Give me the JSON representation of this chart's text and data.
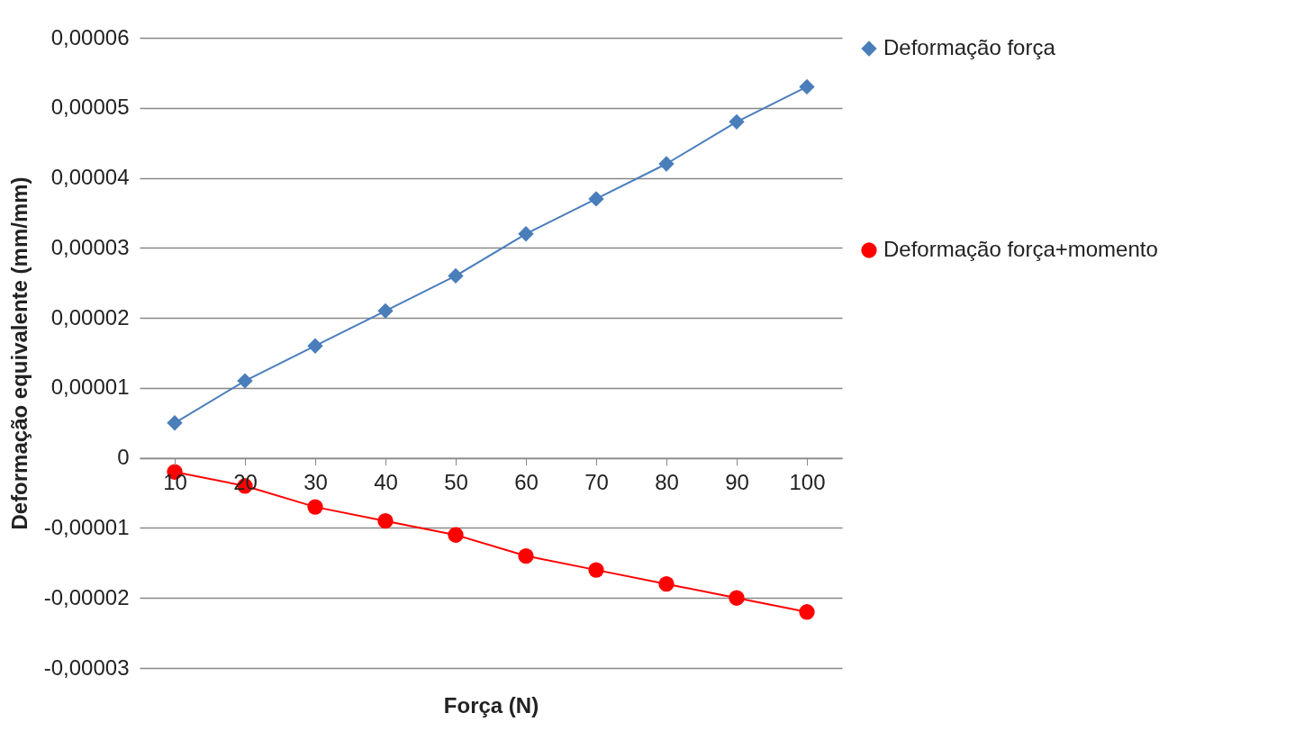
{
  "chart_data": {
    "type": "line",
    "xlabel": "Força (N)",
    "ylabel": "Deformação equivalente (mm/mm)",
    "categories": [
      "10",
      "20",
      "30",
      "40",
      "50",
      "60",
      "70",
      "80",
      "90",
      "100"
    ],
    "series": [
      {
        "name": "Deformação força",
        "color": "#4a7ebb",
        "marker": "diamond",
        "values": [
          5e-06,
          1.1e-05,
          1.6e-05,
          2.1e-05,
          2.6e-05,
          3.2e-05,
          3.7e-05,
          4.2e-05,
          4.8e-05,
          5.3e-05
        ]
      },
      {
        "name": "Deformação força+momento",
        "color": "#ff0000",
        "marker": "circle",
        "values": [
          -2e-06,
          -4e-06,
          -7e-06,
          -9e-06,
          -1.1e-05,
          -1.4e-05,
          -1.6e-05,
          -1.8e-05,
          -2e-05,
          -2.2e-05
        ]
      }
    ],
    "ylim": [
      -3e-05,
      6e-05
    ],
    "yticks": [
      {
        "value": -3e-05,
        "label": "-0,00003"
      },
      {
        "value": -2e-05,
        "label": "-0,00002"
      },
      {
        "value": -1e-05,
        "label": "-0,00001"
      },
      {
        "value": 0,
        "label": "0"
      },
      {
        "value": 1e-05,
        "label": "0,00001"
      },
      {
        "value": 2e-05,
        "label": "0,00002"
      },
      {
        "value": 3e-05,
        "label": "0,00003"
      },
      {
        "value": 4e-05,
        "label": "0,00004"
      },
      {
        "value": 5e-05,
        "label": "0,00005"
      },
      {
        "value": 6e-05,
        "label": "0,00006"
      }
    ],
    "grid": "y",
    "legend": "right"
  }
}
